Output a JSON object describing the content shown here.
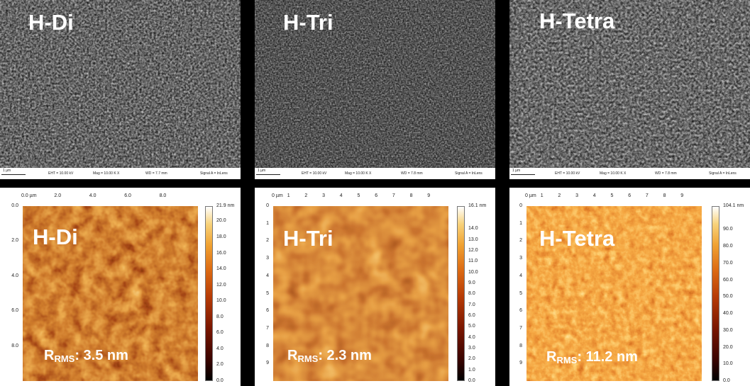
{
  "panels": {
    "di": {
      "sem_label": "H-Di",
      "sem_bar": {
        "scale": "1 µm",
        "eht": "EHT = 10.00 kV",
        "mag": "Mag = 10.00 K X",
        "wd": "WD = 7.7 mm",
        "signal": "Signal A = InLens"
      },
      "afm_label": "H-Di",
      "rms_prefix": "R",
      "rms_sub": "RMS",
      "rms_value": ": 3.5 nm",
      "x_ticks": [
        "0.0 µm",
        "2.0",
        "4.0",
        "6.0",
        "8.0"
      ],
      "y_ticks": [
        "0.0",
        "2.0",
        "4.0",
        "6.0",
        "8.0"
      ],
      "color_ticks": [
        "21.9 nm",
        "20.0",
        "18.0",
        "16.0",
        "14.0",
        "12.0",
        "10.0",
        "8.0",
        "6.0",
        "4.0",
        "2.0",
        "0.0"
      ],
      "color_scale": {
        "min_nm": 0.0,
        "max_nm": 21.9
      }
    },
    "tri": {
      "sem_label": "H-Tri",
      "sem_bar": {
        "scale": "1 µm",
        "eht": "EHT = 10.00 kV",
        "mag": "Mag = 10.00 K X",
        "wd": "WD = 7.8 mm",
        "signal": "Signal A = InLens"
      },
      "afm_label": "H-Tri",
      "rms_prefix": "R",
      "rms_sub": "RMS",
      "rms_value": ": 2.3 nm",
      "x_ticks": [
        "0 µm",
        "1",
        "2",
        "3",
        "4",
        "5",
        "6",
        "7",
        "8",
        "9"
      ],
      "y_ticks": [
        "0",
        "1",
        "2",
        "3",
        "4",
        "5",
        "6",
        "7",
        "8",
        "9"
      ],
      "color_ticks": [
        "16.1 nm",
        "14.0",
        "13.0",
        "12.0",
        "11.0",
        "10.0",
        "9.0",
        "8.0",
        "7.0",
        "6.0",
        "5.0",
        "4.0",
        "3.0",
        "2.0",
        "1.0",
        "0.0"
      ],
      "color_scale": {
        "min_nm": 0.0,
        "max_nm": 16.1
      }
    },
    "tetra": {
      "sem_label": "H-Tetra",
      "sem_bar": {
        "scale": "1 µm",
        "eht": "EHT = 10.00 kV",
        "mag": "Mag = 10.00 K X",
        "wd": "WD = 7.8 mm",
        "signal": "Signal A = InLens"
      },
      "afm_label": "H-Tetra",
      "rms_prefix": "R",
      "rms_sub": "RMS",
      "rms_value": ": 11.2 nm",
      "x_ticks": [
        "0 µm",
        "1",
        "2",
        "3",
        "4",
        "5",
        "6",
        "7",
        "8",
        "9"
      ],
      "y_ticks": [
        "0",
        "1",
        "2",
        "3",
        "4",
        "5",
        "6",
        "7",
        "8",
        "9"
      ],
      "color_ticks": [
        "104.1 nm",
        "90.0",
        "80.0",
        "70.0",
        "60.0",
        "50.0",
        "40.0",
        "30.0",
        "20.0",
        "10.0",
        "0.0"
      ],
      "color_scale": {
        "min_nm": 0.0,
        "max_nm": 104.1
      }
    }
  }
}
